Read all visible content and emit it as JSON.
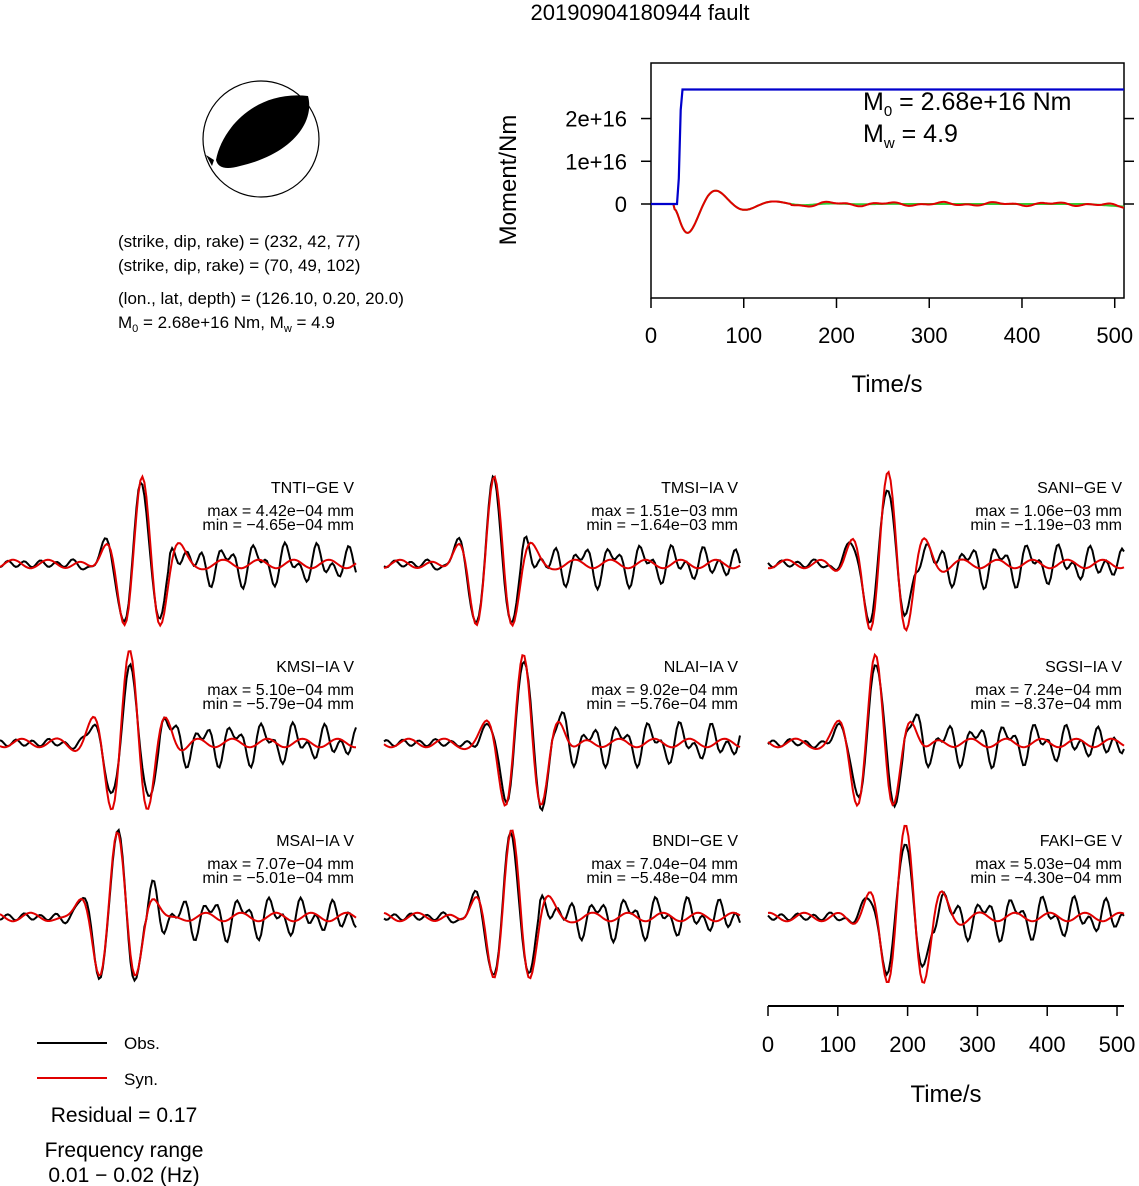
{
  "title": "20190904180944 fault",
  "mechanism": {
    "lines": [
      "(strike, dip, rake) = (232, 42, 77)",
      "(strike, dip, rake) = (70, 49, 102)",
      "(lon., lat, depth) = (126.10, 0.20, 20.0)"
    ],
    "moment_prefix": "M",
    "moment_sub": "0",
    "moment_rest": " = 2.68e+16 Nm, M",
    "mw_sub": "w",
    "mw_rest": " = 4.9"
  },
  "colors": {
    "obs": "#000000",
    "syn": "#e00000",
    "stf": "#0000cc",
    "stf_osc_green": "#33cc33"
  },
  "moment_plot": {
    "label_m0_prefix": "M",
    "label_m0_sub": "0",
    "label_m0_value": " = 2.68e+16 Nm",
    "label_mw_prefix": "M",
    "label_mw_sub": "w",
    "label_mw_value": " = 4.9"
  },
  "chart_data": [
    {
      "type": "line",
      "xlabel": "Time/s",
      "ylabel": "Moment/Nm",
      "xlim": [
        0,
        510
      ],
      "ylim": [
        -2.2e+16,
        3.3e+16
      ],
      "xticks": [
        0,
        100,
        200,
        300,
        400,
        500
      ],
      "xtick_labels": [
        "0",
        "100",
        "200",
        "300",
        "400",
        "500"
      ],
      "yticks": [
        0,
        1e+16,
        2e+16
      ],
      "ytick_labels": [
        "0",
        "1e+16",
        "2e+16"
      ],
      "series": [
        {
          "x": [
            0,
            28,
            30,
            32,
            34,
            510
          ],
          "y": [
            0,
            0,
            6000000000000000.0,
            2.2e+16,
            2.68e+16,
            2.68e+16
          ]
        }
      ]
    },
    {
      "type": "line",
      "xlabel": "Time/s",
      "xlim": [
        0,
        510
      ],
      "xticks": [
        0,
        100,
        200,
        300,
        400,
        500
      ],
      "xtick_labels": [
        "0",
        "100",
        "200",
        "300",
        "400",
        "500"
      ],
      "legend": [
        "Obs.",
        "Syn."
      ],
      "residual": "Residual = 0.17",
      "frequency_title": "Frequency range",
      "frequency_range": "0.01 − 0.02 (Hz)",
      "stations": [
        {
          "name": "TNTI−GE V",
          "max": "max = 4.42e−04 mm",
          "min": "min = −4.65e−04 mm"
        },
        {
          "name": "TMSI−IA V",
          "max": "max = 1.51e−03 mm",
          "min": "min = −1.64e−03 mm"
        },
        {
          "name": "SANI−GE V",
          "max": "max = 1.06e−03 mm",
          "min": "min = −1.19e−03 mm"
        },
        {
          "name": "KMSI−IA V",
          "max": "max = 5.10e−04 mm",
          "min": "min = −5.79e−04 mm"
        },
        {
          "name": "NLAI−IA V",
          "max": "max = 9.02e−04 mm",
          "min": "min = −5.76e−04 mm"
        },
        {
          "name": "SGSI−IA V",
          "max": "max = 7.24e−04 mm",
          "min": "min = −8.37e−04 mm"
        },
        {
          "name": "MSAI−IA V",
          "max": "max = 7.07e−04 mm",
          "min": "min = −5.01e−04 mm"
        },
        {
          "name": "BNDI−GE V",
          "max": "max = 7.04e−04 mm",
          "min": "min = −5.48e−04 mm"
        },
        {
          "name": "FAKI−GE V",
          "max": "max = 5.03e−04 mm",
          "min": "min = −4.30e−04 mm"
        }
      ]
    }
  ]
}
